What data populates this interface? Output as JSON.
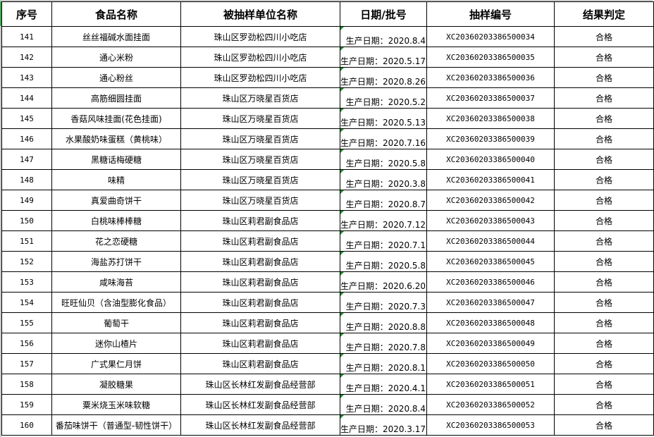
{
  "headers": [
    "序号",
    "食品名称",
    "被抽样单位名称",
    "日期/批号",
    "抽样编号",
    "结果判定"
  ],
  "rows": [
    [
      "141",
      "丝丝福碱水面挂面",
      "珠山区罗劲松四川小吃店",
      "生产日期：2020.8.4",
      "XC20360203386500034",
      "合格"
    ],
    [
      "142",
      "通心米粉",
      "珠山区罗劲松四川小吃店",
      "生产日期：2020.5.17",
      "XC20360203386500035",
      "合格"
    ],
    [
      "143",
      "通心粉丝",
      "珠山区罗劲松四川小吃店",
      "生产日期：2020.8.26",
      "XC20360203386500036",
      "合格"
    ],
    [
      "144",
      "高筋细圆挂面",
      "珠山区万晓星百货店",
      "生产日期：2020.5.2",
      "XC20360203386500037",
      "合格"
    ],
    [
      "145",
      "香菇风味挂面(花色挂面)",
      "珠山区万晓星百货店",
      "生产日期：2020.5.13",
      "XC20360203386500038",
      "合格"
    ],
    [
      "146",
      "水果酸奶味蛋糕（黄桃味）",
      "珠山区万晓星百货店",
      "生产日期：2020.7.16",
      "XC20360203386500039",
      "合格"
    ],
    [
      "147",
      "黑糖话梅硬糖",
      "珠山区万晓星百货店",
      "生产日期：2020.5.8",
      "XC20360203386500040",
      "合格"
    ],
    [
      "148",
      "味精",
      "珠山区万晓星百货店",
      "生产日期：2020.3.8",
      "XC20360203386500041",
      "合格"
    ],
    [
      "149",
      "真爱曲奇饼干",
      "珠山区万晓星百货店",
      "生产日期：2020.8.7",
      "XC20360203386500042",
      "合格"
    ],
    [
      "150",
      "白桃味棒棒糖",
      "珠山区莉君副食品店",
      "生产日期：2020.7.12",
      "XC20360203386500043",
      "合格"
    ],
    [
      "151",
      "花之恋硬糖",
      "珠山区莉君副食品店",
      "生产日期：2020.7.1",
      "XC20360203386500044",
      "合格"
    ],
    [
      "152",
      "海盐苏打饼干",
      "珠山区莉君副食品店",
      "生产日期：2020.5.8",
      "XC20360203386500045",
      "合格"
    ],
    [
      "153",
      "咸味海苔",
      "珠山区莉君副食品店",
      "生产日期：2020.6.20",
      "XC20360203386500046",
      "合格"
    ],
    [
      "154",
      "旺旺仙贝（含油型膨化食品）",
      "珠山区莉君副食品店",
      "生产日期：2020.7.3",
      "XC20360203386500047",
      "合格"
    ],
    [
      "155",
      "葡萄干",
      "珠山区莉君副食品店",
      "生产日期：2020.8.8",
      "XC20360203386500048",
      "合格"
    ],
    [
      "156",
      "迷你山楂片",
      "珠山区莉君副食品店",
      "生产日期：2020.7.8",
      "XC20360203386500049",
      "合格"
    ],
    [
      "157",
      "广式果仁月饼",
      "珠山区莉君副食品店",
      "生产日期：2020.8.1",
      "XC20360203386500050",
      "合格"
    ],
    [
      "158",
      "凝胶糖果",
      "珠山区长林红发副食品经营部",
      "生产日期：2020.4.1",
      "XC20360203386500051",
      "合格"
    ],
    [
      "159",
      "粟米烧玉米味软糖",
      "珠山区长林红发副食品经营部",
      "生产日期：2020.8.4",
      "XC20360203386500052",
      "合格"
    ],
    [
      "160",
      "番茄味饼干（普通型-韧性饼干）",
      "珠山区长林红发副食品经营部",
      "生产日期：2020.3.17",
      "XC20360203386500053",
      "合格"
    ]
  ]
}
